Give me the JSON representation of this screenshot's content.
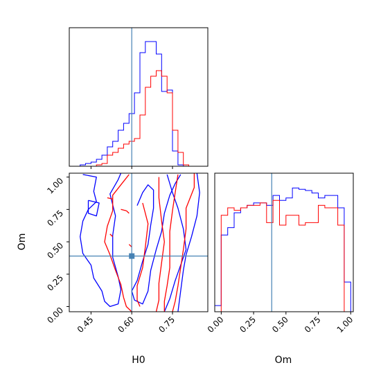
{
  "chart_data": [
    {
      "type": "histogram",
      "panel": "H0 marginal",
      "xlim": [
        0.37,
        0.88
      ],
      "truth": 0.6,
      "bins": [
        0.37,
        0.39,
        0.41,
        0.43,
        0.45,
        0.47,
        0.49,
        0.51,
        0.53,
        0.55,
        0.57,
        0.59,
        0.61,
        0.63,
        0.65,
        0.67,
        0.69,
        0.71,
        0.73,
        0.75,
        0.77,
        0.79,
        0.81,
        0.83,
        0.85,
        0.87
      ],
      "series": [
        {
          "color": "#0000ff",
          "values": [
            0,
            0,
            0.01,
            0.02,
            0.03,
            0.05,
            0.08,
            0.14,
            0.18,
            0.26,
            0.31,
            0.38,
            0.53,
            0.82,
            0.9,
            0.9,
            0.81,
            0.54,
            0.55,
            0.11,
            0.01,
            0,
            0,
            0,
            0
          ]
        },
        {
          "color": "#ff0000",
          "values": [
            0,
            0,
            0,
            0,
            0,
            0.01,
            0.02,
            0.08,
            0.1,
            0.13,
            0.16,
            0.18,
            0.2,
            0.37,
            0.57,
            0.65,
            0.69,
            0.65,
            0.53,
            0.26,
            0.1,
            0.01,
            0,
            0,
            0
          ]
        }
      ]
    },
    {
      "type": "contour",
      "panel": "H0 vs Om",
      "xlabel": "H0",
      "ylabel": "Om",
      "xlim": [
        0.37,
        0.88
      ],
      "ylim": [
        -0.04,
        1.03
      ],
      "truth": {
        "x": 0.6,
        "y": 0.39
      },
      "xticks": [
        "0.45",
        "0.60",
        "0.75"
      ],
      "yticks": [
        "0.00",
        "0.25",
        "0.50",
        "0.75",
        "1.00"
      ],
      "series": [
        {
          "color": "#0000ff",
          "contours": [
            [
              [
                0.42,
                1.02
              ],
              [
                0.47,
                1.0
              ],
              [
                0.46,
                0.89
              ],
              [
                0.47,
                0.81
              ],
              [
                0.44,
                0.75
              ],
              [
                0.42,
                0.66
              ],
              [
                0.41,
                0.54
              ],
              [
                0.42,
                0.41
              ],
              [
                0.45,
                0.32
              ],
              [
                0.46,
                0.22
              ],
              [
                0.49,
                0.12
              ],
              [
                0.5,
                0.04
              ],
              [
                0.52,
                0.0
              ],
              [
                0.55,
                0.02
              ],
              [
                0.56,
                0.13
              ],
              [
                0.55,
                0.23
              ],
              [
                0.53,
                0.38
              ],
              [
                0.53,
                0.55
              ],
              [
                0.54,
                0.7
              ],
              [
                0.52,
                0.87
              ],
              [
                0.55,
                0.98
              ],
              [
                0.56,
                1.03
              ]
            ],
            [
              [
                0.44,
                0.82
              ],
              [
                0.48,
                0.8
              ],
              [
                0.47,
                0.7
              ],
              [
                0.44,
                0.72
              ],
              [
                0.44,
                0.82
              ]
            ],
            [
              [
                0.62,
                0.78
              ],
              [
                0.64,
                0.88
              ],
              [
                0.66,
                0.94
              ],
              [
                0.68,
                0.9
              ],
              [
                0.68,
                0.76
              ],
              [
                0.67,
                0.63
              ],
              [
                0.66,
                0.48
              ],
              [
                0.64,
                0.35
              ],
              [
                0.62,
                0.2
              ],
              [
                0.6,
                0.12
              ],
              [
                0.61,
                0.05
              ],
              [
                0.64,
                0.02
              ],
              [
                0.66,
                0.12
              ],
              [
                0.67,
                0.28
              ],
              [
                0.69,
                0.44
              ],
              [
                0.71,
                0.58
              ],
              [
                0.72,
                0.72
              ],
              [
                0.74,
                0.86
              ],
              [
                0.76,
                0.95
              ],
              [
                0.78,
                1.02
              ]
            ],
            [
              [
                0.73,
                1.02
              ],
              [
                0.75,
                0.88
              ],
              [
                0.77,
                0.76
              ],
              [
                0.79,
                0.6
              ],
              [
                0.8,
                0.44
              ],
              [
                0.78,
                0.32
              ],
              [
                0.76,
                0.2
              ],
              [
                0.74,
                0.06
              ],
              [
                0.72,
                -0.04
              ]
            ],
            [
              [
                0.84,
                1.03
              ],
              [
                0.85,
                0.88
              ],
              [
                0.84,
                0.7
              ],
              [
                0.82,
                0.54
              ],
              [
                0.8,
                0.4
              ],
              [
                0.79,
                0.28
              ],
              [
                0.78,
                0.12
              ],
              [
                0.77,
                -0.04
              ]
            ]
          ]
        },
        {
          "color": "#ff0000",
          "contours": [
            [
              [
                0.59,
                1.02
              ],
              [
                0.56,
                0.94
              ],
              [
                0.53,
                0.86
              ],
              [
                0.53,
                0.74
              ],
              [
                0.51,
                0.62
              ],
              [
                0.5,
                0.5
              ],
              [
                0.52,
                0.4
              ],
              [
                0.54,
                0.28
              ],
              [
                0.56,
                0.17
              ],
              [
                0.57,
                0.07
              ],
              [
                0.58,
                0.0
              ],
              [
                0.6,
                -0.04
              ]
            ],
            [
              [
                0.64,
                0.8
              ],
              [
                0.66,
                0.64
              ],
              [
                0.65,
                0.46
              ],
              [
                0.64,
                0.3
              ],
              [
                0.62,
                0.16
              ],
              [
                0.62,
                0.05
              ],
              [
                0.63,
                0.0
              ]
            ],
            [
              [
                0.7,
                1.0
              ],
              [
                0.7,
                0.84
              ],
              [
                0.71,
                0.66
              ],
              [
                0.72,
                0.5
              ],
              [
                0.71,
                0.34
              ],
              [
                0.7,
                0.18
              ],
              [
                0.7,
                0.05
              ],
              [
                0.69,
                -0.04
              ]
            ],
            [
              [
                0.77,
                1.02
              ],
              [
                0.76,
                0.88
              ],
              [
                0.75,
                0.74
              ],
              [
                0.74,
                0.58
              ],
              [
                0.74,
                0.44
              ],
              [
                0.74,
                0.3
              ],
              [
                0.73,
                0.16
              ],
              [
                0.72,
                0.04
              ],
              [
                0.72,
                -0.04
              ]
            ],
            [
              [
                0.83,
                1.03
              ],
              [
                0.83,
                0.92
              ],
              [
                0.8,
                0.76
              ],
              [
                0.8,
                0.6
              ],
              [
                0.79,
                0.44
              ],
              [
                0.78,
                0.3
              ],
              [
                0.77,
                0.16
              ],
              [
                0.76,
                0.04
              ],
              [
                0.75,
                -0.04
              ]
            ],
            [
              [
                0.51,
                0.84
              ],
              [
                0.53,
                0.83
              ]
            ],
            [
              [
                0.56,
                0.75
              ],
              [
                0.58,
                0.74
              ]
            ],
            [
              [
                0.52,
                0.56
              ],
              [
                0.53,
                0.54
              ]
            ],
            [
              [
                0.58,
                0.74
              ],
              [
                0.59,
                0.72
              ]
            ],
            [
              [
                0.59,
                0.48
              ],
              [
                0.6,
                0.46
              ]
            ]
          ]
        }
      ]
    },
    {
      "type": "histogram",
      "panel": "Om marginal",
      "xlabel": "Om",
      "xlim": [
        -0.05,
        1.02
      ],
      "truth": 0.39,
      "xticks": [
        "0.00",
        "0.25",
        "0.50",
        "0.75",
        "1.00"
      ],
      "bins": [
        -0.05,
        0.0,
        0.05,
        0.1,
        0.15,
        0.2,
        0.25,
        0.3,
        0.35,
        0.4,
        0.45,
        0.5,
        0.55,
        0.6,
        0.65,
        0.7,
        0.75,
        0.8,
        0.85,
        0.9,
        0.95,
        1.0
      ],
      "series": [
        {
          "color": "#0000ff",
          "values": [
            0.05,
            0.62,
            0.68,
            0.8,
            0.84,
            0.86,
            0.88,
            0.88,
            0.86,
            0.94,
            0.9,
            0.92,
            1.0,
            0.99,
            0.98,
            0.96,
            0.92,
            0.94,
            0.94,
            0.84,
            0.24
          ]
        },
        {
          "color": "#ff0000",
          "values": [
            0,
            0.78,
            0.84,
            0.82,
            0.84,
            0.86,
            0.86,
            0.88,
            0.72,
            0.9,
            0.7,
            0.78,
            0.78,
            0.7,
            0.72,
            0.72,
            0.86,
            0.84,
            0.84,
            0.7,
            0
          ]
        }
      ]
    }
  ]
}
